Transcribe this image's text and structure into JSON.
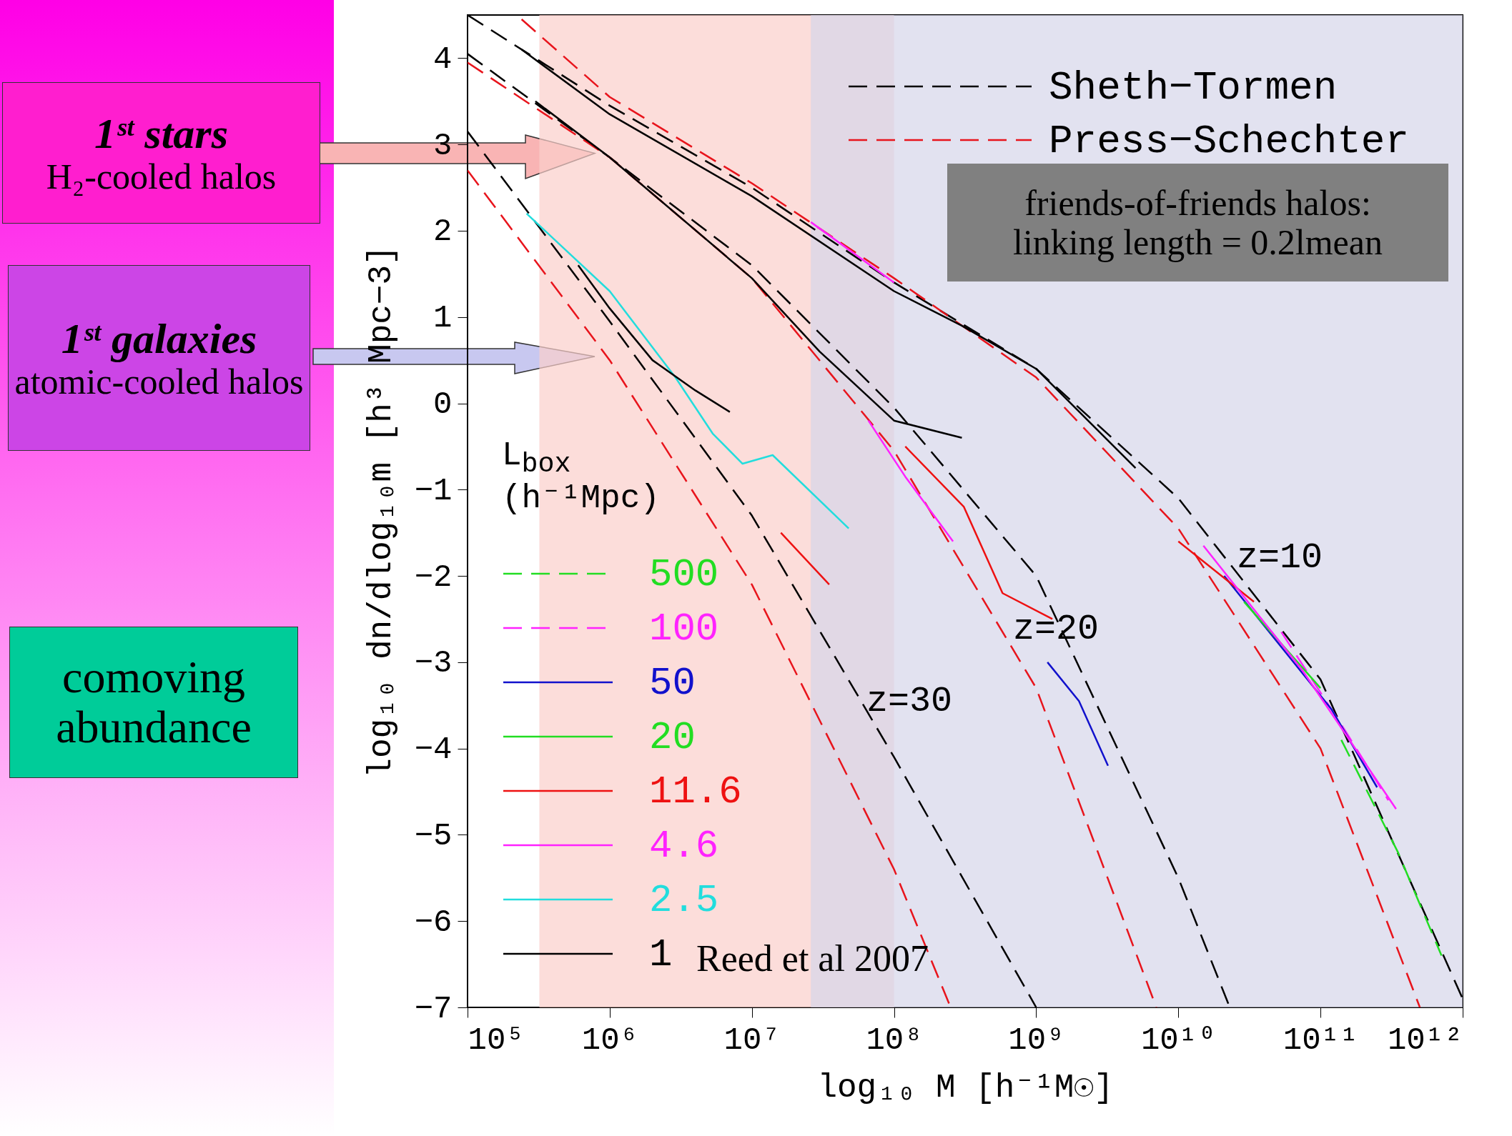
{
  "chart_data": {
    "type": "line",
    "xlabel": "log₁₀ M [h⁻¹M☉]",
    "ylabel": "log₁₀ dn/dlog₁₀m [h³ Mpc−3]",
    "log": "x",
    "xlim": [
      100000,
      1000000000000
    ],
    "ylim": [
      -7,
      4.5
    ],
    "xticks": [
      {
        "value": 100000,
        "label": "10⁵"
      },
      {
        "value": 1000000,
        "label": "10⁶"
      },
      {
        "value": 10000000,
        "label": "10⁷"
      },
      {
        "value": 100000000,
        "label": "10⁸"
      },
      {
        "value": 1000000000,
        "label": "10⁹"
      },
      {
        "value": 10000000000,
        "label": "10¹⁰"
      },
      {
        "value": 100000000000,
        "label": "10¹¹"
      },
      {
        "value": 1000000000000,
        "label": "10¹²"
      }
    ],
    "yticks": [
      -7,
      -6,
      -5,
      -4,
      -3,
      -2,
      -1,
      0,
      1,
      2,
      3,
      4
    ],
    "legend": "bottom left",
    "legend_title": "L$_{box}$\n(h⁻¹Mpc)",
    "marker": "none",
    "series": [
      {
        "name": "Sheth−Tormen",
        "color": "#000000",
        "line_style": "dashed",
        "x": [
          100000,
          1000000,
          10000000,
          100000000,
          1000000000,
          10000000000,
          100000000000,
          1000000000000,
          null,
          100000,
          1000000,
          10000000,
          100000000,
          1000000000,
          10000000000,
          23000000000,
          null,
          100000,
          1000000,
          10000000,
          100000000,
          1000000000
        ],
        "values": [
          4.5,
          3.45,
          2.5,
          1.4,
          0.4,
          -1.1,
          -3.2,
          -6.9,
          null,
          4.05,
          2.85,
          1.6,
          -0.05,
          -2,
          -5.5,
          -7,
          null,
          3.15,
          0.95,
          -1.3,
          -4.1,
          -7
        ]
      },
      {
        "name": "Press−Schechter",
        "color": "#e8141c",
        "line_style": "dashed",
        "x": [
          240000,
          1000000,
          10000000,
          100000000,
          1000000000,
          10000000000,
          100000000000,
          500000000000,
          null,
          100000,
          1000000,
          10000000,
          100000000,
          1000000000,
          7000000000,
          null,
          100000,
          1000000,
          10000000,
          100000000,
          250000000
        ],
        "values": [
          4.45,
          3.55,
          2.55,
          1.45,
          0.3,
          -1.45,
          -4,
          -7,
          null,
          3.95,
          2.85,
          1.45,
          -0.55,
          -3.3,
          -7,
          null,
          2.7,
          0.5,
          -2.1,
          -5.4,
          -7
        ]
      },
      {
        "name": "500",
        "color": "#22dd22",
        "line_style": "dashed",
        "x": [
          140000000000,
          350000000000,
          710000000000
        ],
        "values": [
          -3.9,
          -5.2,
          -6.4
        ]
      },
      {
        "name": "100",
        "color": "#ff22ff",
        "line_style": "dashed",
        "x": [
          53000000000,
          150000000000,
          300000000000
        ],
        "values": [
          -2.65,
          -3.8,
          -4.6
        ]
      },
      {
        "name": "50",
        "color": "#1111cc",
        "line_style": "solid",
        "x": [
          1200000000,
          2000000000,
          3200000000,
          null,
          21000000000,
          120000000000,
          250000000000
        ],
        "values": [
          -3,
          -3.45,
          -4.2,
          null,
          -2,
          -3.55,
          -4.45
        ]
      },
      {
        "name": "20",
        "color": "#22dd22",
        "line_style": "solid",
        "x": [
          29000000000,
          100000000000
        ],
        "values": [
          -2.3,
          -3.3
        ]
      },
      {
        "name": "11.6",
        "color": "#ee1111",
        "line_style": "solid",
        "x": [
          16000000,
          35000000,
          null,
          120000000,
          310000000,
          580000000,
          1300000000,
          null,
          10000000000,
          34000000000
        ],
        "values": [
          -1.5,
          -2.1,
          null,
          -0.5,
          -1.2,
          -2.2,
          -2.5,
          null,
          -1.6,
          -2.3
        ]
      },
      {
        "name": "4.6",
        "color": "#ff22ff",
        "line_style": "solid",
        "x": [
          26000000,
          100000000,
          null,
          66000000,
          120000000,
          260000000,
          null,
          15000000000,
          75000000000,
          340000000000
        ],
        "values": [
          2.1,
          1.4,
          null,
          -0.2,
          -0.85,
          -1.6,
          null,
          -1.65,
          -3.1,
          -4.7
        ]
      },
      {
        "name": "2.5",
        "color": "#22dddd",
        "line_style": "solid",
        "x": [
          260000,
          1000000,
          2900000,
          5300000,
          8600000,
          14000000,
          48000000
        ],
        "values": [
          2.2,
          1.3,
          0.3,
          -0.35,
          -0.7,
          -0.6,
          -1.45
        ]
      },
      {
        "name": "1",
        "color": "#000000",
        "line_style": "solid",
        "x": [
          240000,
          1000000,
          10000000,
          100000000,
          300000000,
          1000000000,
          5000000000,
          null,
          300000,
          1000000,
          10000000,
          30000000,
          100000000,
          300000000,
          null,
          600000,
          1000000,
          2000000,
          4000000,
          7000000
        ],
        "values": [
          4.1,
          3.35,
          2.4,
          1.3,
          0.9,
          0.4,
          -0.75,
          null,
          3.5,
          2.85,
          1.45,
          0.6,
          -0.2,
          -0.4,
          null,
          1.6,
          1.1,
          0.5,
          0.15,
          -0.1
        ]
      }
    ],
    "bands": [
      {
        "axis": "x",
        "from": 320000,
        "to": 100000000,
        "color": "#fbcfcb"
      },
      {
        "axis": "x",
        "from": 26000000,
        "to": 1000000000000,
        "color": "#d6d6ea"
      }
    ],
    "annotations": [
      "z=10",
      "z=20",
      "z=30",
      "friends-of-friends halos:\nlinking length = 0.2lmean",
      "Reed et al 2007",
      "comoving abundance",
      "1ˢᵗ stars\nH₂-cooled halos",
      "1ˢᵗ galaxies\natomic-cooled halos"
    ]
  }
}
